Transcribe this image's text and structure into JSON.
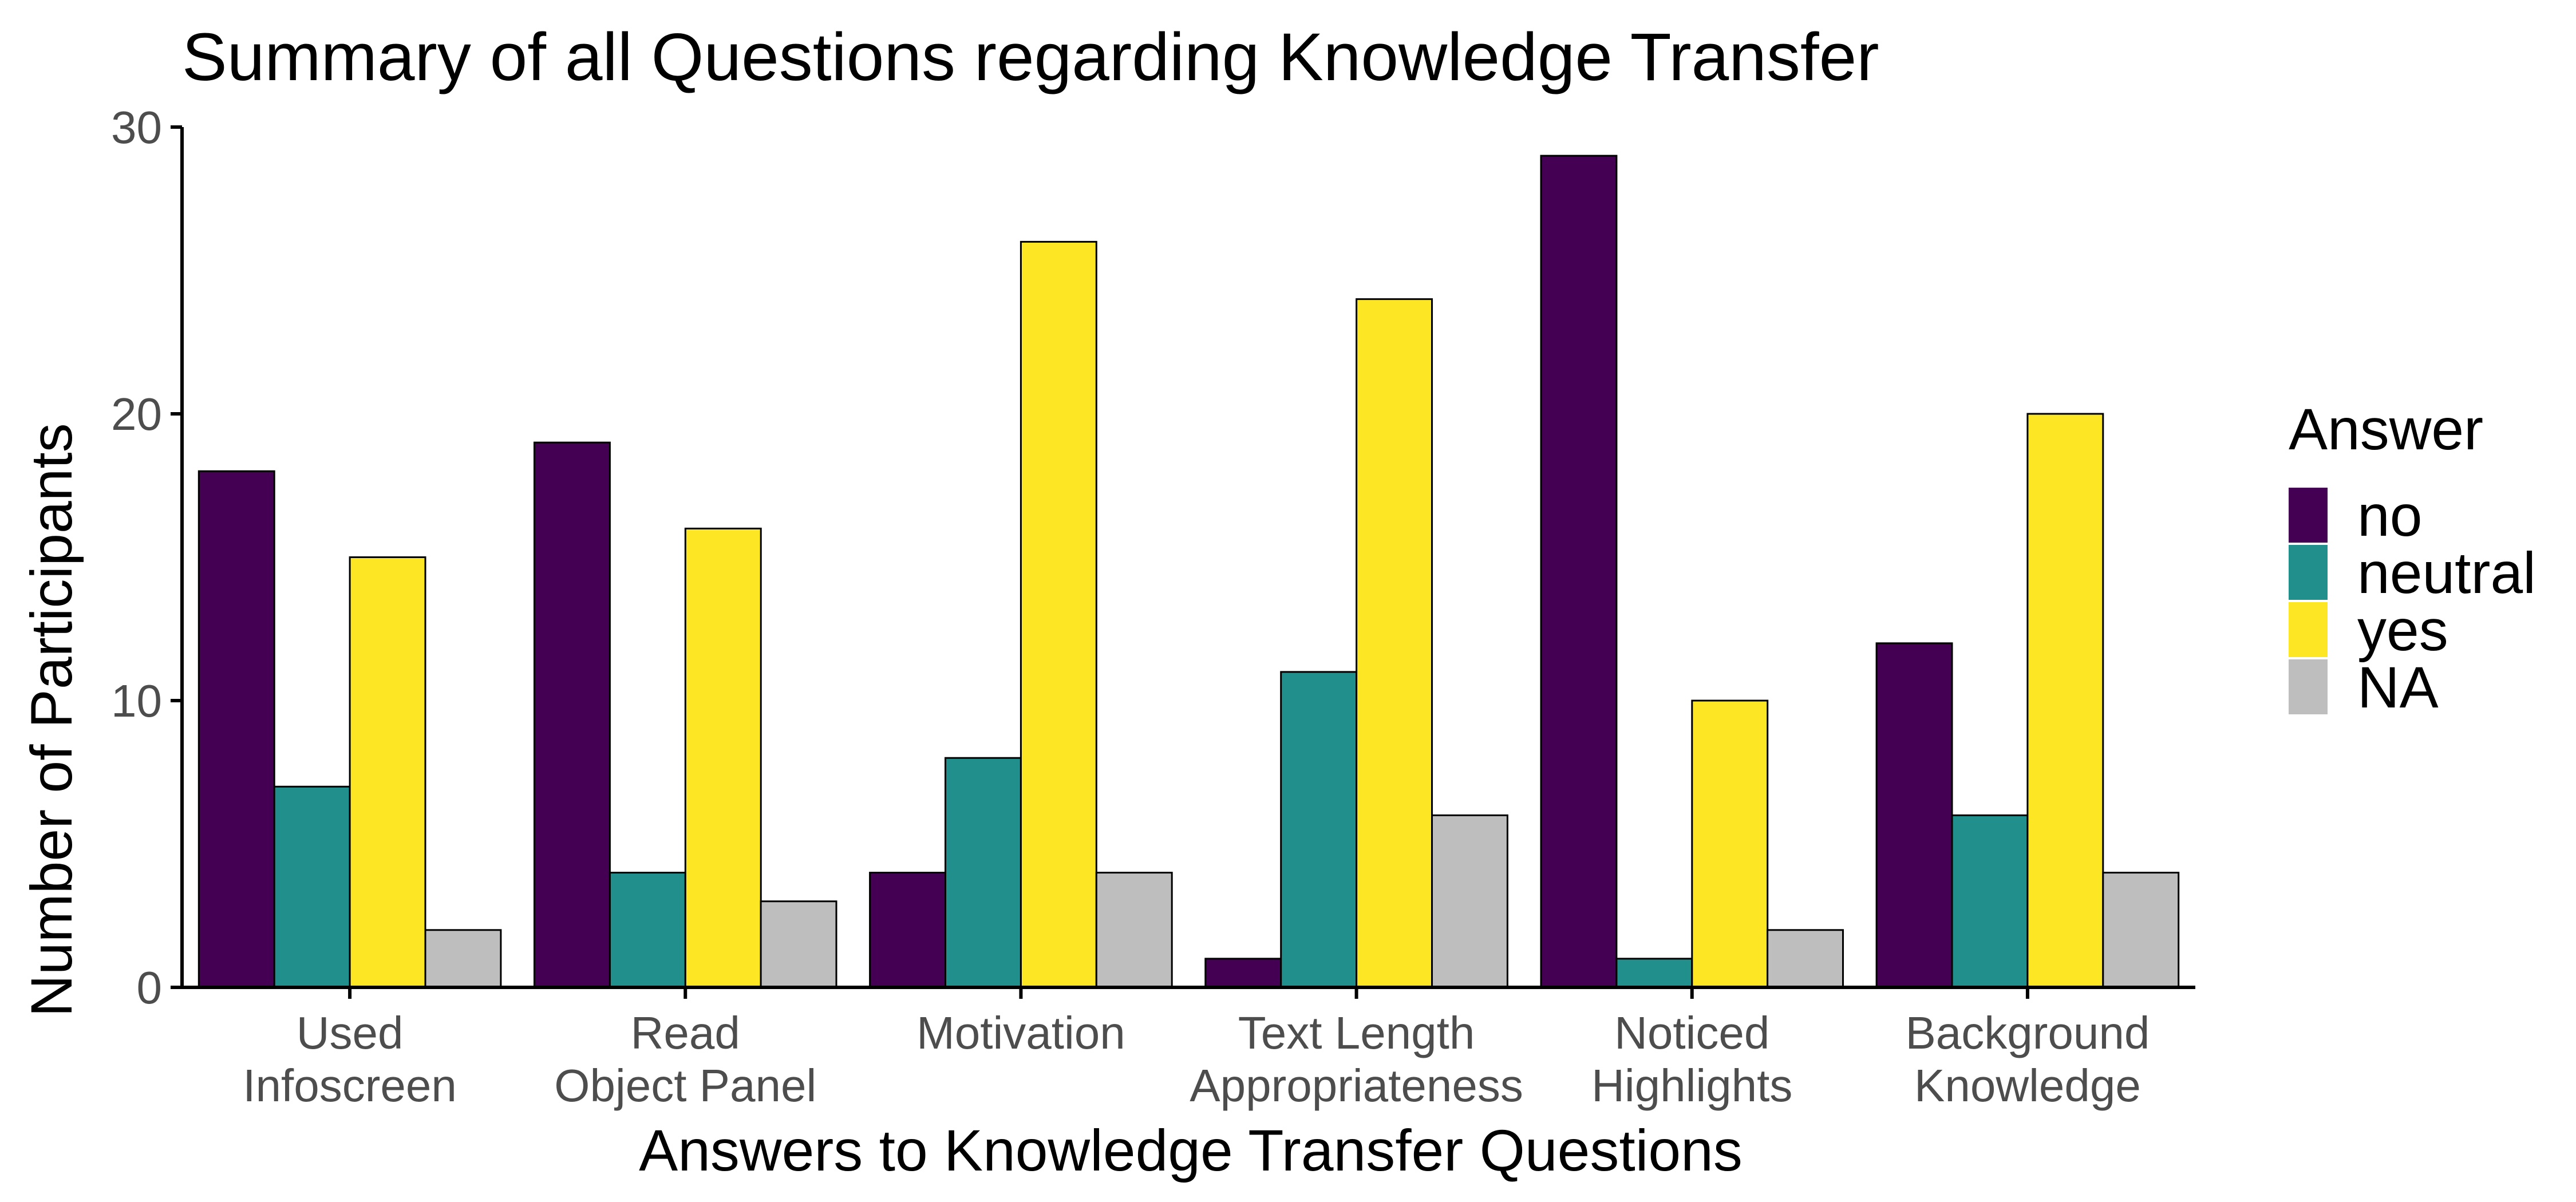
{
  "chart_data": {
    "type": "bar",
    "title": "Summary of all Questions regarding Knowledge Transfer",
    "xlabel": "Answers to Knowledge Transfer Questions",
    "ylabel": "Number of Participants",
    "ylim": [
      0,
      30
    ],
    "yticks": [
      0,
      10,
      20,
      30
    ],
    "grid": false,
    "legend_title": "Answer",
    "legend_position": "right",
    "categories": [
      [
        "Used",
        "Infoscreen"
      ],
      [
        "Read",
        "Object Panel"
      ],
      [
        "Motivation"
      ],
      [
        "Text Length",
        "Appropriateness"
      ],
      [
        "Noticed",
        "Highlights"
      ],
      [
        "Background",
        "Knowledge"
      ]
    ],
    "series": [
      {
        "name": "no",
        "color": "#440154",
        "values": [
          18,
          19,
          4,
          1,
          29,
          12
        ]
      },
      {
        "name": "neutral",
        "color": "#21908C",
        "values": [
          7,
          4,
          8,
          11,
          1,
          6
        ]
      },
      {
        "name": "yes",
        "color": "#FDE725",
        "values": [
          15,
          16,
          26,
          24,
          10,
          20
        ]
      },
      {
        "name": "NA",
        "color": "#BEBEBE",
        "values": [
          2,
          3,
          4,
          6,
          2,
          4
        ]
      }
    ]
  }
}
